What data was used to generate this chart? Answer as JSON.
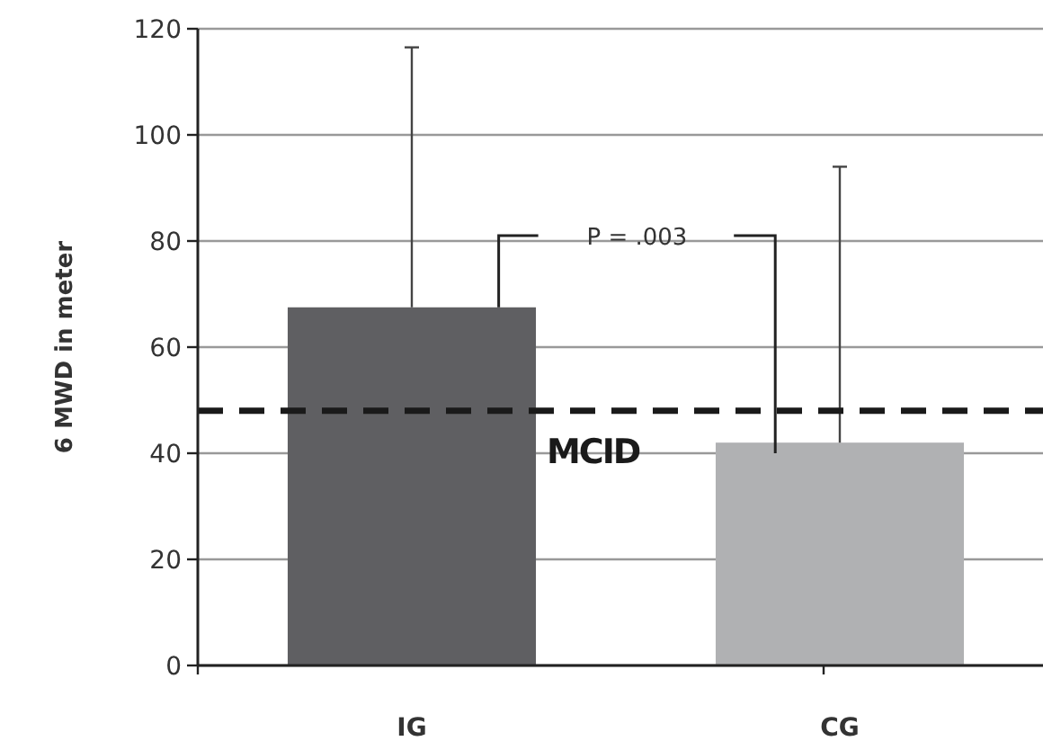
{
  "chart_data": {
    "type": "bar",
    "ylabel": "6 MWD in meter",
    "categories": [
      "IG",
      "CG"
    ],
    "values": [
      67.5,
      42
    ],
    "colors": [
      "#5f5f62",
      "#b0b1b3"
    ],
    "errors": [
      [
        67.5,
        116.5
      ],
      [
        42,
        94
      ]
    ],
    "ylim": [
      0,
      120
    ],
    "yticks": [
      0,
      20,
      40,
      60,
      80,
      100,
      120
    ],
    "grid": "y",
    "ref_lines": [
      {
        "axis": "y",
        "value": 48,
        "label": "MCID",
        "color": "#1a1a1a",
        "line_style": "dashed"
      }
    ],
    "annotations": [
      "P = .003"
    ]
  }
}
